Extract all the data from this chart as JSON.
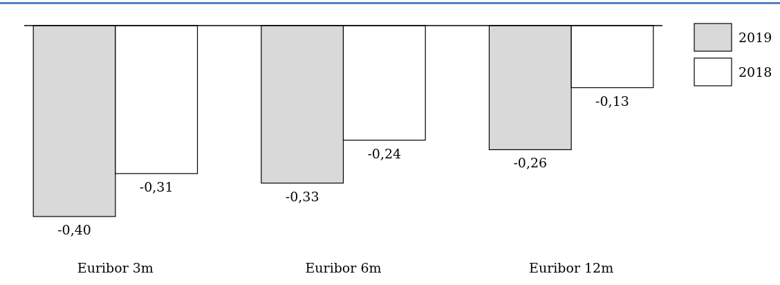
{
  "chart_data": {
    "type": "bar",
    "categories": [
      "Euribor 3m",
      "Euribor 6m",
      "Euribor 12m"
    ],
    "series": [
      {
        "name": "2019",
        "color": "#d9d9d9",
        "values": [
          -0.4,
          -0.33,
          -0.26
        ],
        "value_labels": [
          "-0,40",
          "-0,33",
          "-0,26"
        ]
      },
      {
        "name": "2018",
        "color": "#ffffff",
        "values": [
          -0.31,
          -0.24,
          -0.13
        ],
        "value_labels": [
          "-0,31",
          "-0,24",
          "-0,13"
        ]
      }
    ],
    "legend": "right"
  }
}
